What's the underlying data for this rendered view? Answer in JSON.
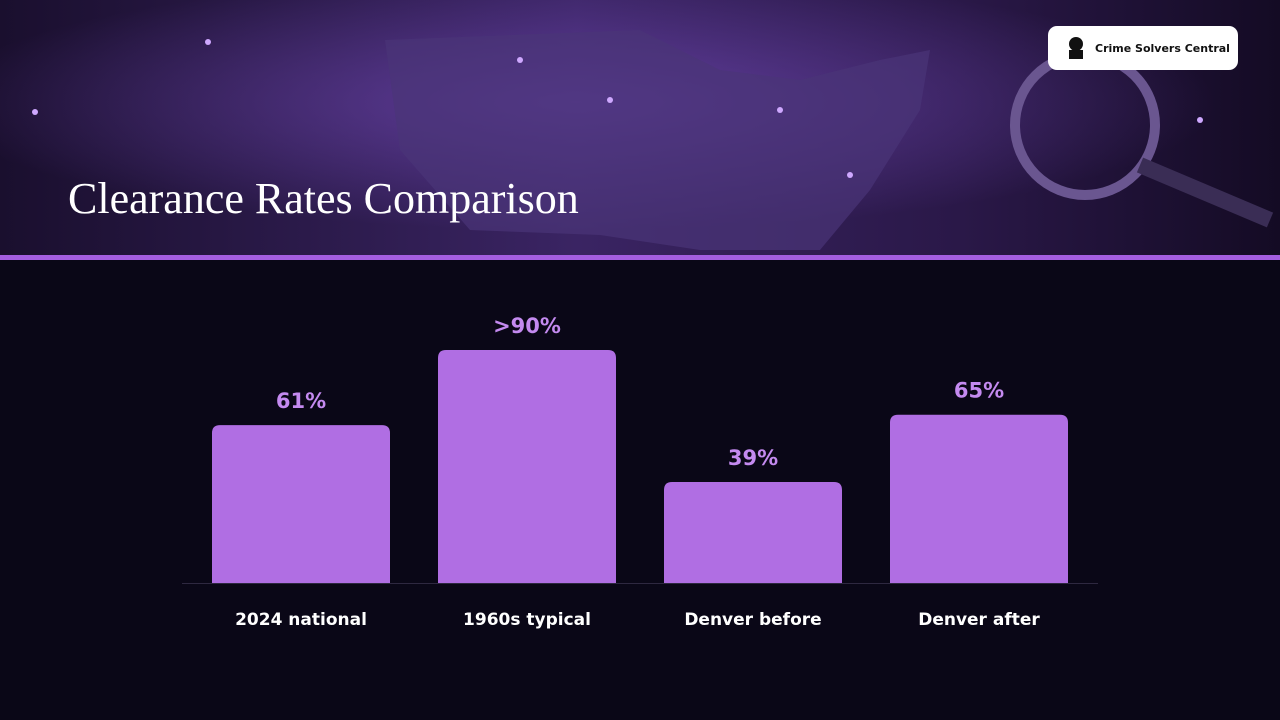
{
  "header": {
    "title": "Clearance Rates Comparison",
    "logo": "Crime Solvers Central"
  },
  "chart_data": {
    "type": "bar",
    "categories": [
      "2024 national",
      "1960s typical",
      "Denver before",
      "Denver after"
    ],
    "values": [
      61,
      90,
      39,
      65
    ],
    "value_labels": [
      "61%",
      ">90%",
      "39%",
      "65%"
    ],
    "color": "#b06ee3"
  }
}
